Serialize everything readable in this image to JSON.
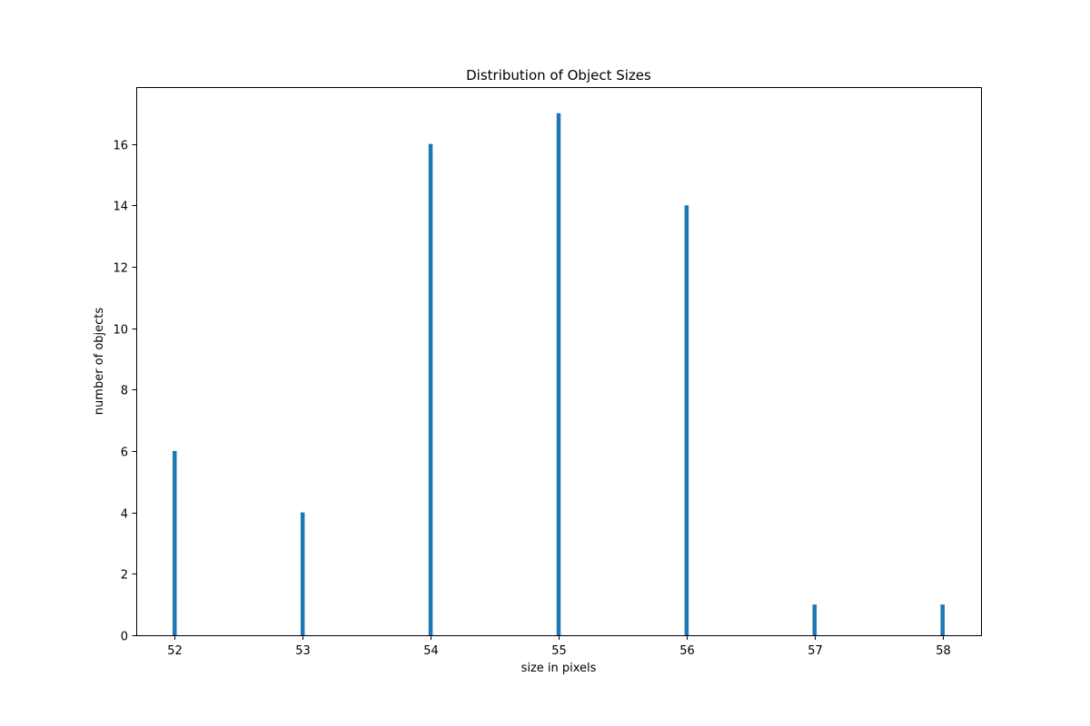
{
  "chart_data": {
    "type": "bar",
    "title": "Distribution of Object Sizes",
    "xlabel": "size in pixels",
    "ylabel": "number of objects",
    "x": [
      52,
      53,
      54,
      55,
      56,
      57,
      58
    ],
    "values": [
      6,
      4,
      16,
      17,
      14,
      1,
      1
    ],
    "xlim": [
      51.7,
      58.3
    ],
    "ylim": [
      0,
      17.85
    ],
    "xticks": [
      52,
      53,
      54,
      55,
      56,
      57,
      58
    ],
    "yticks": [
      0,
      2,
      4,
      6,
      8,
      10,
      12,
      14,
      16
    ],
    "grid": false,
    "bar_color": "#1f77b4"
  }
}
